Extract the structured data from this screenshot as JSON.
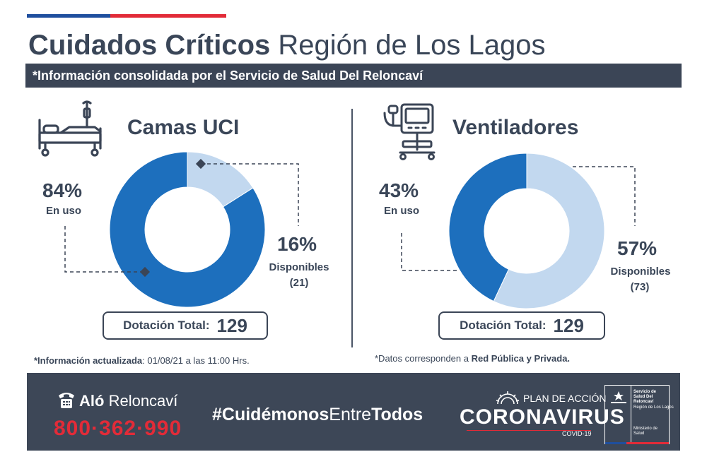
{
  "header": {
    "title_bold": "Cuidados Críticos",
    "title_light": "Región de Los Lagos",
    "subtitle": "*Información consolidada por el Servicio de Salud Del Reloncaví"
  },
  "colors": {
    "dark_blue": "#1d6fbd",
    "light_blue": "#c2d8ef",
    "slate": "#3b4556",
    "red": "#e22b38"
  },
  "camas": {
    "title": "Camas UCI",
    "icon": "hospital-bed-icon",
    "in_use_pct": "84%",
    "in_use_label": "En uso",
    "available_pct": "16%",
    "available_label": "Disponibles",
    "available_count": "(21)",
    "total_label": "Dotación Total:",
    "total_value": "129"
  },
  "ventiladores": {
    "title": "Ventiladores",
    "icon": "ventilator-icon",
    "in_use_pct": "43%",
    "in_use_label": "En uso",
    "available_pct": "57%",
    "available_label": "Disponibles",
    "available_count": "(73)",
    "total_label": "Dotación Total:",
    "total_value": "129"
  },
  "notes": {
    "left_prefix": "*Información actualizada",
    "left_suffix": ": 01/08/21 a las 11:00 Hrs.",
    "right_prefix": "*Datos corresponden a ",
    "right_bold": "Red Pública y Privada."
  },
  "footer": {
    "alo_bold": "Aló",
    "alo_light": "Reloncaví",
    "phone": "800·362·990",
    "hashtag_a": "#Cuidémonos",
    "hashtag_b": "Entre",
    "hashtag_c": "Todos",
    "plan": "PLAN DE ACCIÓN",
    "corona": "CORONAVIRUS",
    "covid": "COVID-19",
    "gov_lines": [
      "Servicio de",
      "Salud Del",
      "Reloncaví",
      "Región de Los Lagos",
      "Ministerio de",
      "Salud"
    ]
  },
  "chart_data": [
    {
      "type": "pie",
      "title": "Camas UCI",
      "categories": [
        "En uso",
        "Disponibles"
      ],
      "values": [
        84,
        16
      ],
      "available_count": 21,
      "total": 129,
      "colors": [
        "#1d6fbd",
        "#c2d8ef"
      ]
    },
    {
      "type": "pie",
      "title": "Ventiladores",
      "categories": [
        "En uso",
        "Disponibles"
      ],
      "values": [
        43,
        57
      ],
      "available_count": 73,
      "total": 129,
      "colors": [
        "#1d6fbd",
        "#c2d8ef"
      ]
    }
  ]
}
